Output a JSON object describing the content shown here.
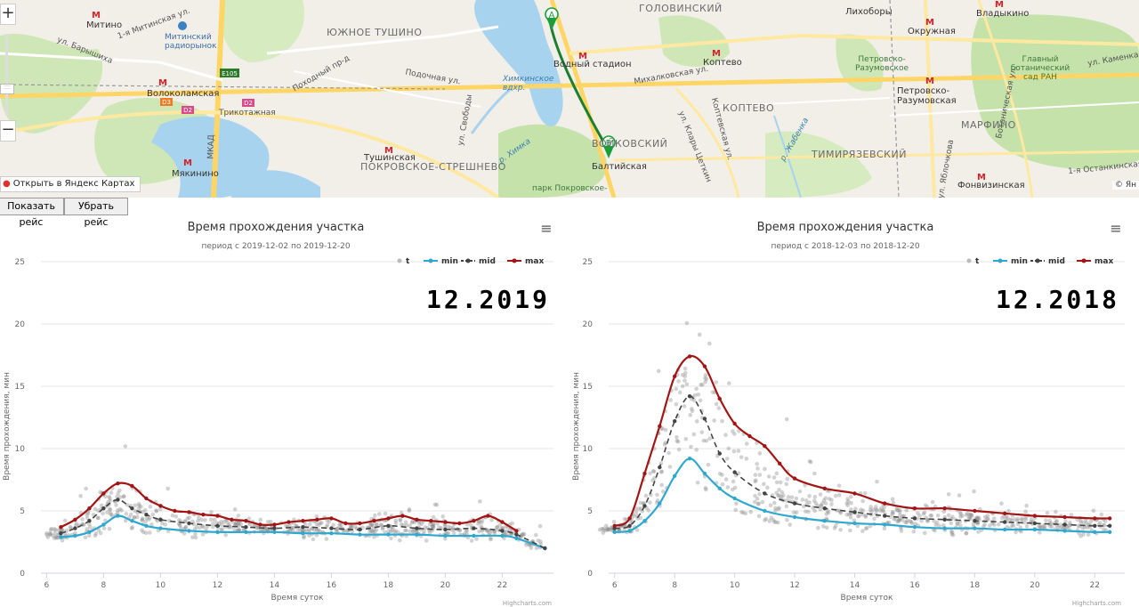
{
  "map": {
    "districts": [
      "ЮЖНОЕ ТУШИНО",
      "ГОЛОВИНСКИЙ",
      "КОПТЕВО",
      "ТИМИРЯЗЕВСКИЙ",
      "МАРФИНО",
      "ПОКРОВСКОЕ-СТРЕШНЕВО",
      "ВОЙКОВСКИЙ"
    ],
    "metro": [
      "Митино",
      "Волоколамская",
      "Тушинская",
      "Мякинино",
      "Водный стадион",
      "Балтийская",
      "Коптево",
      "Петровско-Разумовская",
      "Окружная",
      "Лихоборы",
      "Владыкино",
      "Фонвизинская"
    ],
    "streets": [
      "ул. Барышиха",
      "1-я Митинская ул.",
      "МКАД",
      "Походный пр-д",
      "Подочная ул.",
      "ул. Свободы",
      "Михалковская ул.",
      "Коптевская ул.",
      "Ботаническая ул.",
      "ул. Клары Цеткин",
      "1-я Останкинская ул.",
      "ул. Каменка",
      "ул. Яблочкова"
    ],
    "pois": [
      "Митинский радиорынок",
      "Трикотажная",
      "Главный ботанический сад РАН",
      "Петровско-Разумовское",
      "парк Покровское-"
    ],
    "water": [
      "Химкинское вдхр.",
      "р. Химка",
      "р. Жабенка"
    ],
    "road_badges": [
      "E105",
      "D2",
      "D2",
      "D3"
    ],
    "markers": [
      "A",
      "B"
    ],
    "yandex_link": "Открыть в Яндекс Картах",
    "copyright": "© Ян",
    "zoom_in": "+",
    "zoom_out": "−",
    "zoom_handle": "::::"
  },
  "buttons": {
    "show_route": "Показать рейс",
    "hide_route": "Убрать рейс"
  },
  "colors": {
    "min": "#2fa8d0",
    "mid": "#444444",
    "max": "#a31515",
    "scatter": "#888888"
  },
  "chart_data": [
    {
      "type": "line",
      "title": "Время прохождения участка",
      "subtitle": "период с 2019-12-02 по 2019-12-20",
      "annotation": "12.2019",
      "xlabel": "Время суток",
      "ylabel": "Время прохождения, мин",
      "xlim": [
        5.8,
        23.8
      ],
      "ylim": [
        0,
        25
      ],
      "xticks": [
        6,
        8,
        10,
        12,
        14,
        16,
        18,
        20,
        22
      ],
      "yticks": [
        0,
        5,
        10,
        15,
        20,
        25
      ],
      "legend": [
        "t",
        "min",
        "mid",
        "max"
      ],
      "legend_position": "top-right",
      "grid": true,
      "menu_icon": "≡",
      "credit": "Highcharts.com",
      "series": [
        {
          "name": "min",
          "x": [
            6.5,
            7.0,
            7.5,
            8.0,
            8.5,
            9.0,
            9.5,
            10.0,
            11.0,
            12.0,
            13.0,
            14.0,
            15.0,
            16.0,
            17.0,
            18.0,
            19.0,
            20.0,
            21.0,
            22.0,
            22.5,
            23.5
          ],
          "y": [
            2.9,
            3.0,
            3.3,
            3.9,
            4.6,
            4.2,
            3.8,
            3.6,
            3.4,
            3.3,
            3.3,
            3.3,
            3.2,
            3.2,
            3.1,
            3.1,
            3.1,
            3.0,
            3.0,
            3.0,
            2.8,
            2.0
          ]
        },
        {
          "name": "mid",
          "x": [
            6.5,
            7.0,
            7.5,
            8.0,
            8.5,
            9.0,
            9.5,
            10.0,
            11.0,
            12.0,
            13.0,
            14.0,
            15.0,
            16.0,
            17.0,
            18.0,
            19.0,
            20.0,
            21.0,
            22.0,
            22.5,
            23.5
          ],
          "y": [
            3.2,
            3.6,
            4.2,
            5.2,
            5.9,
            5.2,
            4.7,
            4.3,
            4.0,
            3.8,
            3.7,
            3.6,
            3.7,
            3.6,
            3.5,
            3.8,
            3.6,
            3.5,
            3.6,
            3.4,
            3.1,
            2.0
          ]
        },
        {
          "name": "max",
          "x": [
            6.5,
            7.0,
            7.5,
            8.0,
            8.5,
            9.0,
            9.5,
            10.0,
            10.5,
            11.0,
            11.5,
            12.0,
            12.5,
            13.0,
            13.5,
            14.0,
            14.5,
            15.0,
            15.5,
            16.0,
            16.5,
            17.0,
            17.5,
            18.0,
            18.5,
            19.0,
            19.5,
            20.0,
            20.5,
            21.0,
            21.5,
            22.0,
            22.5
          ],
          "y": [
            3.7,
            4.3,
            5.2,
            6.4,
            7.2,
            7.0,
            6.0,
            5.4,
            5.0,
            4.9,
            4.7,
            4.6,
            4.3,
            4.2,
            3.9,
            3.9,
            4.1,
            4.2,
            4.3,
            4.4,
            4.0,
            4.0,
            4.2,
            4.4,
            4.6,
            4.3,
            4.2,
            4.1,
            4.0,
            4.2,
            4.6,
            4.1,
            3.4
          ]
        }
      ]
    },
    {
      "type": "line",
      "title": "Время прохождения участка",
      "subtitle": "период с 2018-12-03 по 2018-12-20",
      "annotation": "12.2018",
      "xlabel": "Время суток",
      "ylabel": "Время прохождения, мин",
      "xlim": [
        5.8,
        23.0
      ],
      "ylim": [
        0,
        25
      ],
      "xticks": [
        6,
        8,
        10,
        12,
        14,
        16,
        18,
        20,
        22
      ],
      "yticks": [
        0,
        5,
        10,
        15,
        20,
        25
      ],
      "legend": [
        "t",
        "min",
        "mid",
        "max"
      ],
      "legend_position": "top-right",
      "grid": true,
      "menu_icon": "≡",
      "credit": "Highcharts.com",
      "series": [
        {
          "name": "min",
          "x": [
            6.0,
            6.5,
            7.0,
            7.5,
            8.0,
            8.5,
            9.0,
            9.5,
            10.0,
            11.0,
            12.0,
            13.0,
            14.0,
            15.0,
            16.0,
            17.0,
            18.0,
            19.0,
            20.0,
            21.0,
            22.0,
            22.5
          ],
          "y": [
            3.3,
            3.4,
            4.2,
            5.6,
            7.8,
            9.2,
            8.0,
            6.8,
            6.0,
            5.0,
            4.5,
            4.2,
            4.0,
            3.9,
            3.7,
            3.6,
            3.6,
            3.5,
            3.5,
            3.4,
            3.3,
            3.3
          ]
        },
        {
          "name": "mid",
          "x": [
            6.0,
            6.5,
            7.0,
            7.5,
            8.0,
            8.5,
            9.0,
            9.5,
            10.0,
            11.0,
            12.0,
            13.0,
            14.0,
            15.0,
            16.0,
            17.0,
            18.0,
            19.0,
            20.0,
            21.0,
            22.0,
            22.5
          ],
          "y": [
            3.6,
            3.8,
            5.4,
            8.5,
            12.2,
            14.2,
            12.4,
            9.6,
            8.1,
            6.4,
            5.6,
            5.2,
            4.9,
            4.6,
            4.4,
            4.3,
            4.2,
            4.1,
            4.0,
            3.9,
            3.8,
            3.8
          ]
        },
        {
          "name": "max",
          "x": [
            6.0,
            6.5,
            7.0,
            7.5,
            8.0,
            8.5,
            9.0,
            9.5,
            10.0,
            10.5,
            11.0,
            11.5,
            12.0,
            13.0,
            14.0,
            15.0,
            16.0,
            17.0,
            18.0,
            19.0,
            20.0,
            21.0,
            22.0,
            22.5
          ],
          "y": [
            3.8,
            4.4,
            8.0,
            11.8,
            15.8,
            17.4,
            16.6,
            14.0,
            12.0,
            11.0,
            10.2,
            8.8,
            7.6,
            6.8,
            6.4,
            5.6,
            5.2,
            5.2,
            5.0,
            4.8,
            4.6,
            4.5,
            4.4,
            4.4
          ]
        }
      ]
    }
  ]
}
